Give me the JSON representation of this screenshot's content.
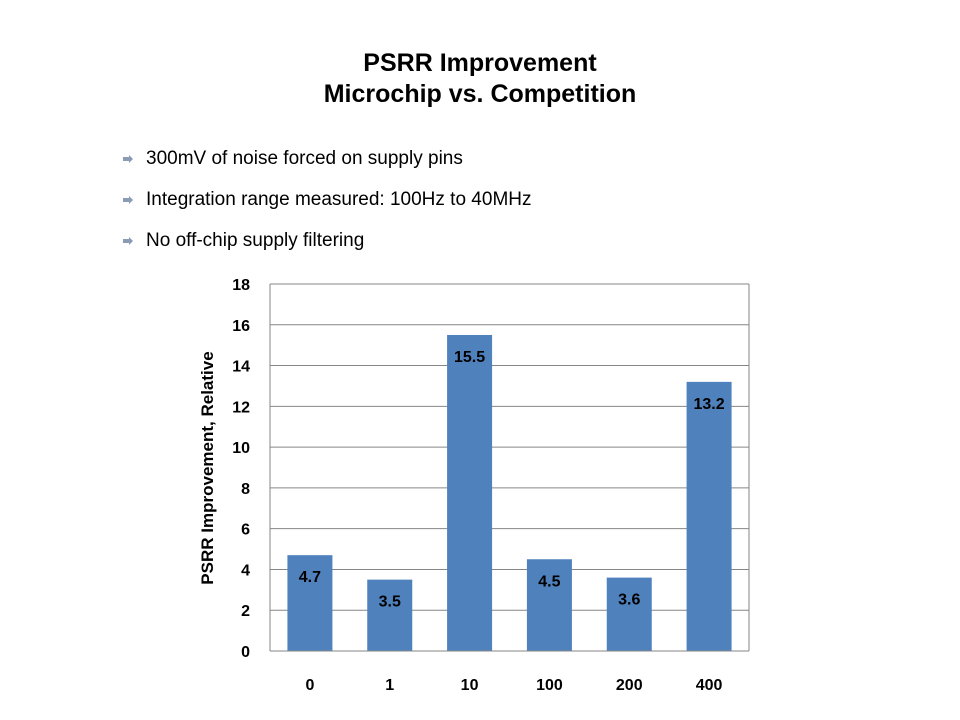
{
  "slide": {
    "title_line1": "PSRR Improvement",
    "title_line2": "Microchip vs. Competition",
    "bullets": [
      "300mV of noise forced on supply pins",
      "Integration range measured: 100Hz to 40MHz",
      "No off-chip supply filtering"
    ]
  },
  "colors": {
    "bar": "#4F81BD",
    "grid": "#868686",
    "text": "#000000",
    "bullet": "#8C9BB5"
  },
  "chart_data": {
    "type": "bar",
    "title": "",
    "xlabel": "",
    "ylabel": "PSRR Improvement, Relative",
    "categories": [
      "0",
      "1",
      "10",
      "100",
      "200",
      "400"
    ],
    "values": [
      4.7,
      3.5,
      15.5,
      4.5,
      3.6,
      13.2
    ],
    "value_labels": [
      "4.7",
      "3.5",
      "15.5",
      "4.5",
      "3.6",
      "13.2"
    ],
    "ylim": [
      0,
      18
    ],
    "yticks": [
      "0",
      "2",
      "4",
      "6",
      "8",
      "10",
      "12",
      "14",
      "16",
      "18"
    ],
    "grid": true,
    "legend": "none"
  }
}
